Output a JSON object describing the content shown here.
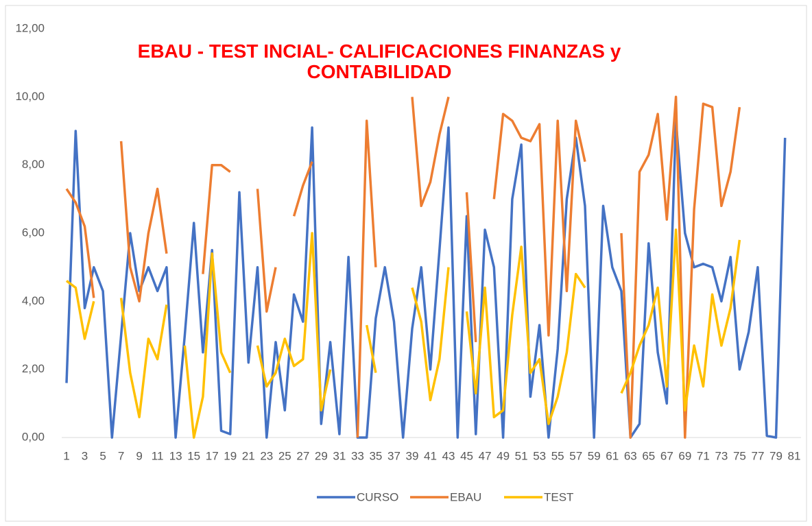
{
  "chart_data": {
    "type": "line",
    "title": "EBAU - TEST INCIAL- CALIFICACIONES FINANZAS y CONTABILIDAD",
    "categories": [
      "1",
      null,
      "3",
      null,
      "5",
      null,
      "7",
      null,
      "9",
      null,
      "11",
      null,
      "13",
      null,
      "15",
      null,
      "17",
      null,
      "19",
      null,
      "21",
      null,
      "23",
      null,
      "25",
      null,
      "27",
      null,
      "29",
      null,
      "31",
      null,
      "33",
      null,
      "35",
      null,
      "37",
      null,
      "39",
      null,
      "41",
      null,
      "43",
      null,
      "45",
      null,
      "47",
      null,
      "49",
      null,
      "51",
      null,
      "53",
      null,
      "55",
      null,
      "57",
      null,
      "59",
      null,
      "61",
      null,
      "63",
      null,
      "65",
      null,
      "67",
      null,
      "69",
      null,
      "71",
      null,
      "73",
      null,
      "75",
      null,
      "77",
      null,
      "79",
      null,
      "81"
    ],
    "series": [
      {
        "name": "CURSO",
        "color": "#4472c4",
        "values": [
          1.6,
          9.0,
          3.8,
          5.0,
          4.3,
          0,
          3.0,
          6.0,
          4.3,
          5.0,
          4.3,
          5.0,
          0,
          3.0,
          6.3,
          2.5,
          5.5,
          0.2,
          0.1,
          7.2,
          2.2,
          5.0,
          0,
          2.8,
          0.8,
          4.2,
          3.4,
          9.1,
          0.4,
          2.8,
          0.1,
          5.3,
          0,
          0,
          3.5,
          5.0,
          3.4,
          0,
          3.2,
          5.0,
          2.0,
          5.5,
          9.1,
          0,
          6.5,
          0.1,
          6.1,
          5.0,
          0,
          7.0,
          8.6,
          1.2,
          3.3,
          0,
          2.6,
          7.0,
          8.8,
          6.8,
          0,
          6.8,
          5.0,
          4.3,
          0,
          0.4,
          5.7,
          2.5,
          1.0,
          9.3,
          6.0,
          5.0,
          5.1,
          5.0,
          4.0,
          5.3,
          2.0,
          3.1,
          5.0,
          0.05,
          0,
          8.8,
          null
        ]
      },
      {
        "name": "EBAU",
        "color": "#ed7d31",
        "values": [
          7.3,
          6.9,
          6.2,
          4.1,
          null,
          null,
          8.7,
          5.0,
          4.0,
          6.0,
          7.3,
          5.4,
          null,
          null,
          null,
          4.8,
          8.0,
          8.0,
          7.8,
          null,
          null,
          7.3,
          3.7,
          5.0,
          null,
          6.5,
          7.4,
          8.1,
          null,
          null,
          null,
          null,
          0,
          9.3,
          5.0,
          null,
          null,
          null,
          10,
          6.8,
          7.5,
          8.9,
          10,
          null,
          7.2,
          2.8,
          null,
          7.0,
          9.5,
          9.3,
          8.8,
          8.7,
          9.2,
          3.0,
          9.3,
          4.3,
          9.3,
          8.1,
          null,
          null,
          null,
          6.0,
          0,
          7.8,
          8.3,
          9.5,
          6.4,
          10,
          0,
          6.7,
          9.8,
          9.7,
          6.8,
          7.8,
          9.7,
          null,
          null,
          null,
          null,
          null,
          null
        ]
      },
      {
        "name": "TEST",
        "color": "#ffc000",
        "values": [
          4.6,
          4.4,
          2.9,
          4.0,
          null,
          null,
          4.1,
          1.9,
          0.6,
          2.9,
          2.3,
          3.9,
          null,
          2.7,
          0,
          1.2,
          5.4,
          2.5,
          1.9,
          null,
          null,
          2.7,
          1.5,
          1.9,
          2.9,
          2.1,
          2.3,
          6.0,
          0.8,
          2.0,
          null,
          null,
          null,
          3.3,
          1.9,
          null,
          null,
          null,
          4.4,
          3.4,
          1.1,
          2.3,
          5.0,
          null,
          3.7,
          1.3,
          4.4,
          0.6,
          0.8,
          3.6,
          5.6,
          1.9,
          2.3,
          0.4,
          1.2,
          2.5,
          4.8,
          4.4,
          null,
          null,
          null,
          1.3,
          1.9,
          2.7,
          3.3,
          4.4,
          1.5,
          6.1,
          0.8,
          2.7,
          1.5,
          4.2,
          2.7,
          3.8,
          5.8,
          null,
          null,
          null,
          null,
          null,
          null
        ]
      }
    ],
    "ylim": [
      0,
      12
    ],
    "yticks": [
      {
        "value": 0,
        "label": "0,00"
      },
      {
        "value": 2,
        "label": "2,00"
      },
      {
        "value": 4,
        "label": "4,00"
      },
      {
        "value": 6,
        "label": "6,00"
      },
      {
        "value": 8,
        "label": "8,00"
      },
      {
        "value": 10,
        "label": "10,00"
      },
      {
        "value": 12,
        "label": "12,00"
      }
    ],
    "grid": false,
    "legend": "bottom"
  }
}
